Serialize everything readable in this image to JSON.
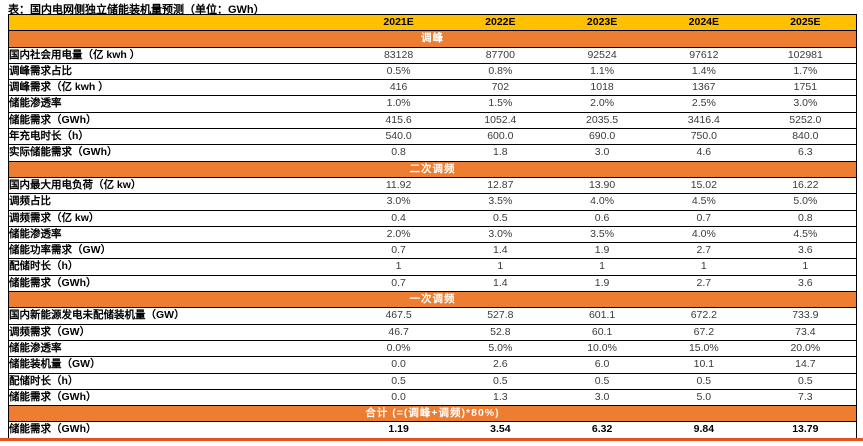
{
  "title": "表：国内电网侧独立储能装机量预测（单位：GWh）",
  "colors": {
    "header_bg": "#FFC000",
    "section_bg": "#ED7D31",
    "bottom_rule": "#E8501E"
  },
  "table": {
    "columns": [
      "",
      "2021E",
      "2022E",
      "2023E",
      "2024E",
      "2025E"
    ],
    "sections": [
      {
        "header": "调峰",
        "rows": [
          {
            "label": "国内社会用电量（亿 kwh ）",
            "values": [
              "83128",
              "87700",
              "92524",
              "97612",
              "102981"
            ]
          },
          {
            "label": "调峰需求占比",
            "values": [
              "0.5%",
              "0.8%",
              "1.1%",
              "1.4%",
              "1.7%"
            ]
          },
          {
            "label": "调峰需求（亿 kwh ）",
            "values": [
              "416",
              "702",
              "1018",
              "1367",
              "1751"
            ]
          },
          {
            "label": "储能渗透率",
            "values": [
              "1.0%",
              "1.5%",
              "2.0%",
              "2.5%",
              "3.0%"
            ]
          },
          {
            "label": "储能需求（GWh）",
            "values": [
              "415.6",
              "1052.4",
              "2035.5",
              "3416.4",
              "5252.0"
            ]
          },
          {
            "label": "年充电时长（h）",
            "values": [
              "540.0",
              "600.0",
              "690.0",
              "750.0",
              "840.0"
            ]
          },
          {
            "label": "实际储能需求（GWh）",
            "values": [
              "0.8",
              "1.8",
              "3.0",
              "4.6",
              "6.3"
            ]
          }
        ]
      },
      {
        "header": "二次调频",
        "rows": [
          {
            "label": "国内最大用电负荷（亿 kw）",
            "values": [
              "11.92",
              "12.87",
              "13.90",
              "15.02",
              "16.22"
            ]
          },
          {
            "label": "调频占比",
            "values": [
              "3.0%",
              "3.5%",
              "4.0%",
              "4.5%",
              "5.0%"
            ]
          },
          {
            "label": "调频需求（亿 kw）",
            "values": [
              "0.4",
              "0.5",
              "0.6",
              "0.7",
              "0.8"
            ]
          },
          {
            "label": "储能渗透率",
            "values": [
              "2.0%",
              "3.0%",
              "3.5%",
              "4.0%",
              "4.5%"
            ]
          },
          {
            "label": "储能功率需求（GW）",
            "values": [
              "0.7",
              "1.4",
              "1.9",
              "2.7",
              "3.6"
            ]
          },
          {
            "label": "配储时长（h）",
            "values": [
              "1",
              "1",
              "1",
              "1",
              "1"
            ]
          },
          {
            "label": "储能需求（GWh）",
            "values": [
              "0.7",
              "1.4",
              "1.9",
              "2.7",
              "3.6"
            ]
          }
        ]
      },
      {
        "header": "一次调频",
        "rows": [
          {
            "label": "国内新能源发电未配储装机量（GW）",
            "values": [
              "467.5",
              "527.8",
              "601.1",
              "672.2",
              "733.9"
            ]
          },
          {
            "label": "调频需求（GW）",
            "values": [
              "46.7",
              "52.8",
              "60.1",
              "67.2",
              "73.4"
            ]
          },
          {
            "label": "储能渗透率",
            "values": [
              "0.0%",
              "5.0%",
              "10.0%",
              "15.0%",
              "20.0%"
            ]
          },
          {
            "label": "储能装机量（GW）",
            "values": [
              "0.0",
              "2.6",
              "6.0",
              "10.1",
              "14.7"
            ]
          },
          {
            "label": "配储时长（h）",
            "values": [
              "0.5",
              "0.5",
              "0.5",
              "0.5",
              "0.5"
            ]
          },
          {
            "label": "储能需求（GWh）",
            "values": [
              "0.0",
              "1.3",
              "3.0",
              "5.0",
              "7.3"
            ]
          }
        ]
      },
      {
        "header": "合计 (=(调峰+调频)*80%)",
        "rows": [
          {
            "label": "储能需求（GWh）",
            "bold": true,
            "values": [
              "1.19",
              "3.54",
              "6.32",
              "9.84",
              "13.79"
            ]
          }
        ]
      }
    ]
  }
}
